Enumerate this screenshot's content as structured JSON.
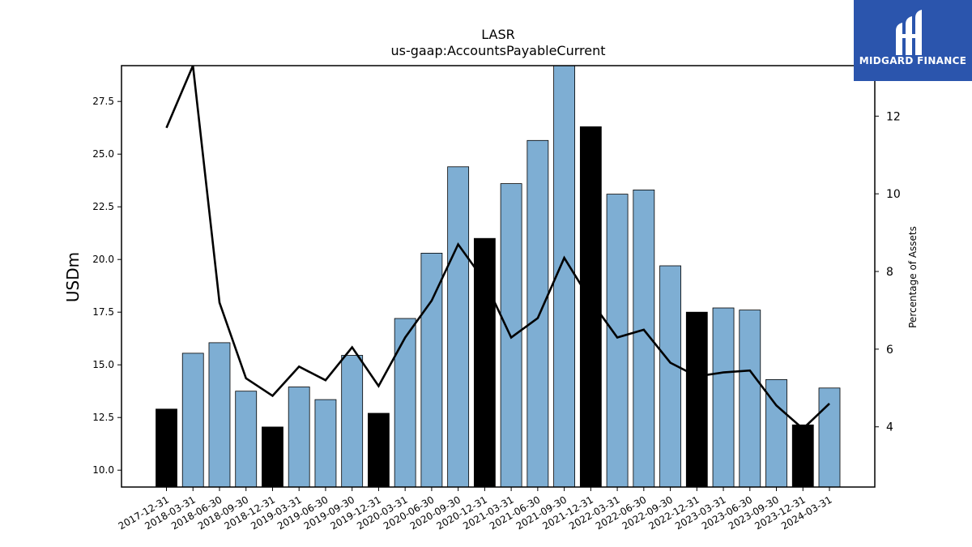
{
  "chart_data": {
    "type": "bar",
    "title": "LASR",
    "subtitle": "us-gaap:AccountsPayableCurrent",
    "ylabel": "USDm",
    "y2label": "Percentage of Assets",
    "categories": [
      "2017-12-31",
      "2018-03-31",
      "2018-06-30",
      "2018-09-30",
      "2018-12-31",
      "2019-03-31",
      "2019-06-30",
      "2019-09-30",
      "2019-12-31",
      "2020-03-31",
      "2020-06-30",
      "2020-09-30",
      "2020-12-31",
      "2021-03-31",
      "2021-06-30",
      "2021-09-30",
      "2021-12-31",
      "2022-03-31",
      "2022-06-30",
      "2022-09-30",
      "2022-12-31",
      "2023-03-31",
      "2023-06-30",
      "2023-09-30",
      "2023-12-31",
      "2024-03-31"
    ],
    "series": [
      {
        "name": "",
        "kind": "bar",
        "axis": "left",
        "values": [
          12.9,
          15.55,
          16.05,
          13.75,
          12.05,
          13.95,
          13.35,
          15.45,
          12.7,
          17.2,
          20.3,
          24.4,
          21.0,
          23.6,
          25.65,
          29.3,
          26.3,
          23.1,
          23.3,
          19.7,
          17.5,
          17.7,
          17.6,
          14.3,
          12.15,
          13.9
        ],
        "colors": [
          "#000000",
          "#7eaed3",
          "#7eaed3",
          "#7eaed3",
          "#000000",
          "#7eaed3",
          "#7eaed3",
          "#7eaed3",
          "#000000",
          "#7eaed3",
          "#7eaed3",
          "#7eaed3",
          "#000000",
          "#7eaed3",
          "#7eaed3",
          "#7eaed3",
          "#000000",
          "#7eaed3",
          "#7eaed3",
          "#7eaed3",
          "#000000",
          "#7eaed3",
          "#7eaed3",
          "#7eaed3",
          "#000000",
          "#7eaed3"
        ]
      },
      {
        "name": "",
        "kind": "line",
        "axis": "right",
        "values": [
          11.7,
          13.3,
          7.2,
          5.25,
          4.8,
          5.55,
          5.2,
          6.05,
          5.05,
          6.3,
          7.25,
          8.7,
          7.75,
          6.3,
          6.8,
          8.35,
          7.25,
          6.3,
          6.5,
          5.65,
          5.3,
          5.4,
          5.45,
          4.55,
          3.95,
          4.6
        ]
      }
    ],
    "ylim": [
      9.2,
      29.2
    ],
    "yticks": [
      10.0,
      12.5,
      15.0,
      17.5,
      20.0,
      22.5,
      25.0,
      27.5
    ],
    "y2lim": [
      2.45,
      13.3
    ],
    "y2ticks": [
      4,
      6,
      8,
      10,
      12
    ],
    "grid": false,
    "colors": {
      "bar_highlight": "#000000",
      "bar_normal": "#7eaed3",
      "line": "#000000"
    }
  },
  "logo": {
    "text": "MIDGARD FINANCE",
    "background": "#2b55ad"
  }
}
